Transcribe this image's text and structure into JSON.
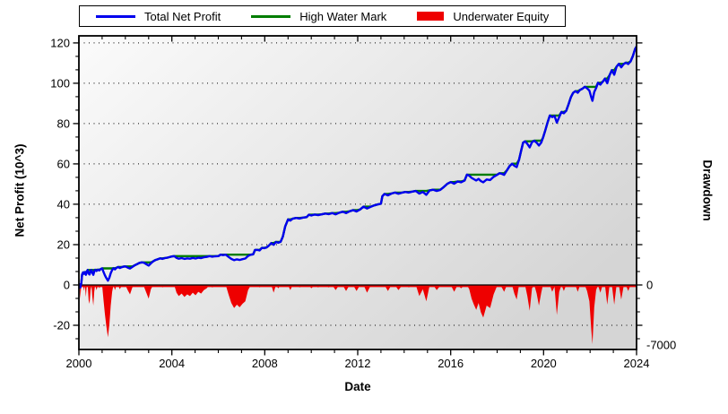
{
  "legend": {
    "items": [
      {
        "label": "Total Net Profit",
        "color": "#0000ee",
        "swatch": "line"
      },
      {
        "label": "High Water Mark",
        "color": "#007d00",
        "swatch": "line"
      },
      {
        "label": "Underwater Equity",
        "color": "#ee0000",
        "swatch": "fill"
      }
    ]
  },
  "chart_data": {
    "type": "line",
    "title": "",
    "xlabel": "Date",
    "ylabel_left": "Net Profit (10^3)",
    "ylabel_right": "Drawdown",
    "legend_position": "top",
    "grid": {
      "color": "#000000",
      "style": "dotted"
    },
    "plot_bg_gradient": [
      "#fbfbfb",
      "#d5d5d5"
    ],
    "zero_line_color": "#000000",
    "x_axis": {
      "min": 2000,
      "max": 2024,
      "ticks": [
        2000,
        2004,
        2008,
        2012,
        2016,
        2020,
        2024
      ],
      "minor_step_years": 1
    },
    "y_left": {
      "range": [
        -32,
        123.5
      ],
      "ticks": [
        -20,
        0,
        20,
        40,
        60,
        80,
        100,
        120
      ],
      "minor_divisions_per_major": 3
    },
    "y_right": {
      "ticks": [
        0,
        -7000
      ],
      "range_at_plot_bottom": -7520
    },
    "series": [
      {
        "name": "Total Net Profit",
        "axis": "left",
        "color": "#0000ee",
        "units": "10^3",
        "points": [
          [
            2000.0,
            0
          ],
          [
            2000.03,
            0.3
          ],
          [
            2000.06,
            -1.3
          ],
          [
            2000.1,
            0.6
          ],
          [
            2000.14,
            5.2
          ],
          [
            2000.18,
            6.2
          ],
          [
            2000.22,
            5.5
          ],
          [
            2000.26,
            6.4
          ],
          [
            2000.3,
            5.0
          ],
          [
            2000.34,
            6.6
          ],
          [
            2000.38,
            7.4
          ],
          [
            2000.42,
            5.6
          ],
          [
            2000.46,
            5.2
          ],
          [
            2000.5,
            6.8
          ],
          [
            2000.54,
            7.4
          ],
          [
            2000.58,
            6.0
          ],
          [
            2000.62,
            5.0
          ],
          [
            2000.66,
            6.6
          ],
          [
            2000.7,
            7.5
          ],
          [
            2000.76,
            6.9
          ],
          [
            2000.82,
            7.6
          ],
          [
            2000.88,
            7.2
          ],
          [
            2000.94,
            7.9
          ],
          [
            2001.0,
            8.2
          ],
          [
            2001.06,
            6.4
          ],
          [
            2001.12,
            4.8
          ],
          [
            2001.18,
            3.4
          ],
          [
            2001.25,
            2.1
          ],
          [
            2001.31,
            3.6
          ],
          [
            2001.37,
            5.8
          ],
          [
            2001.43,
            7.4
          ],
          [
            2001.49,
            8.3
          ],
          [
            2001.55,
            7.7
          ],
          [
            2001.62,
            8.5
          ],
          [
            2001.69,
            8.9
          ],
          [
            2001.76,
            8.4
          ],
          [
            2001.84,
            8.8
          ],
          [
            2001.92,
            9.1
          ],
          [
            2002.0,
            9.2
          ],
          [
            2002.1,
            8.6
          ],
          [
            2002.2,
            8.1
          ],
          [
            2002.3,
            8.9
          ],
          [
            2002.4,
            9.7
          ],
          [
            2002.5,
            10.3
          ],
          [
            2002.6,
            10.9
          ],
          [
            2002.7,
            11.2
          ],
          [
            2002.8,
            11.0
          ],
          [
            2002.9,
            10.3
          ],
          [
            2003.0,
            9.6
          ],
          [
            2003.1,
            10.7
          ],
          [
            2003.2,
            11.7
          ],
          [
            2003.3,
            12.4
          ],
          [
            2003.4,
            12.8
          ],
          [
            2003.5,
            13.2
          ],
          [
            2003.6,
            12.9
          ],
          [
            2003.7,
            13.3
          ],
          [
            2003.8,
            13.5
          ],
          [
            2003.9,
            13.8
          ],
          [
            2004.0,
            14.1
          ],
          [
            2004.1,
            14.3
          ],
          [
            2004.2,
            13.4
          ],
          [
            2004.3,
            13.0
          ],
          [
            2004.42,
            13.3
          ],
          [
            2004.54,
            12.9
          ],
          [
            2004.66,
            13.2
          ],
          [
            2004.78,
            13.0
          ],
          [
            2004.9,
            13.4
          ],
          [
            2005.02,
            13.1
          ],
          [
            2005.14,
            13.5
          ],
          [
            2005.26,
            13.3
          ],
          [
            2005.38,
            13.7
          ],
          [
            2005.5,
            13.9
          ],
          [
            2005.62,
            14.3
          ],
          [
            2005.74,
            14.0
          ],
          [
            2005.86,
            14.2
          ],
          [
            2006.0,
            14.3
          ],
          [
            2006.1,
            15.0
          ],
          [
            2006.2,
            14.8
          ],
          [
            2006.32,
            15.0
          ],
          [
            2006.44,
            13.9
          ],
          [
            2006.56,
            12.9
          ],
          [
            2006.68,
            12.3
          ],
          [
            2006.8,
            12.7
          ],
          [
            2006.92,
            12.4
          ],
          [
            2007.04,
            12.8
          ],
          [
            2007.16,
            13.1
          ],
          [
            2007.28,
            14.4
          ],
          [
            2007.4,
            15.0
          ],
          [
            2007.5,
            15.2
          ],
          [
            2007.58,
            17.3
          ],
          [
            2007.68,
            17.4
          ],
          [
            2007.78,
            17.1
          ],
          [
            2007.88,
            18.4
          ],
          [
            2007.98,
            18.2
          ],
          [
            2008.08,
            18.6
          ],
          [
            2008.18,
            19.6
          ],
          [
            2008.28,
            20.8
          ],
          [
            2008.38,
            19.9
          ],
          [
            2008.48,
            21.3
          ],
          [
            2008.58,
            20.9
          ],
          [
            2008.68,
            21.4
          ],
          [
            2008.78,
            24.0
          ],
          [
            2008.88,
            29.0
          ],
          [
            2009.0,
            32.5
          ],
          [
            2009.1,
            31.9
          ],
          [
            2009.2,
            32.8
          ],
          [
            2009.35,
            33.2
          ],
          [
            2009.5,
            32.9
          ],
          [
            2009.65,
            33.4
          ],
          [
            2009.8,
            33.6
          ],
          [
            2009.9,
            34.8
          ],
          [
            2010.0,
            34.4
          ],
          [
            2010.15,
            34.9
          ],
          [
            2010.3,
            34.6
          ],
          [
            2010.45,
            35.0
          ],
          [
            2010.6,
            35.4
          ],
          [
            2010.75,
            35.1
          ],
          [
            2010.9,
            35.6
          ],
          [
            2011.05,
            35.0
          ],
          [
            2011.2,
            35.8
          ],
          [
            2011.35,
            36.3
          ],
          [
            2011.5,
            35.6
          ],
          [
            2011.65,
            36.5
          ],
          [
            2011.8,
            37.1
          ],
          [
            2011.95,
            36.4
          ],
          [
            2012.1,
            37.4
          ],
          [
            2012.25,
            38.8
          ],
          [
            2012.4,
            37.9
          ],
          [
            2012.55,
            38.7
          ],
          [
            2012.7,
            39.4
          ],
          [
            2012.85,
            39.9
          ],
          [
            2013.0,
            40.3
          ],
          [
            2013.06,
            44.0
          ],
          [
            2013.15,
            45.1
          ],
          [
            2013.3,
            44.4
          ],
          [
            2013.45,
            45.3
          ],
          [
            2013.6,
            45.8
          ],
          [
            2013.75,
            45.2
          ],
          [
            2013.9,
            45.7
          ],
          [
            2014.05,
            46.1
          ],
          [
            2014.2,
            45.8
          ],
          [
            2014.35,
            46.3
          ],
          [
            2014.5,
            46.6
          ],
          [
            2014.65,
            45.3
          ],
          [
            2014.8,
            46.1
          ],
          [
            2014.95,
            44.7
          ],
          [
            2015.1,
            46.9
          ],
          [
            2015.25,
            47.2
          ],
          [
            2015.4,
            46.6
          ],
          [
            2015.55,
            47.1
          ],
          [
            2015.7,
            48.5
          ],
          [
            2015.85,
            50.1
          ],
          [
            2016.0,
            51.0
          ],
          [
            2016.15,
            50.2
          ],
          [
            2016.3,
            51.3
          ],
          [
            2016.45,
            50.9
          ],
          [
            2016.6,
            51.8
          ],
          [
            2016.7,
            54.7
          ],
          [
            2016.8,
            54.2
          ],
          [
            2016.9,
            53.1
          ],
          [
            2017.0,
            52.4
          ],
          [
            2017.1,
            51.8
          ],
          [
            2017.2,
            52.6
          ],
          [
            2017.3,
            51.5
          ],
          [
            2017.4,
            50.9
          ],
          [
            2017.55,
            52.3
          ],
          [
            2017.7,
            52.0
          ],
          [
            2017.85,
            53.6
          ],
          [
            2018.0,
            54.6
          ],
          [
            2018.1,
            55.4
          ],
          [
            2018.2,
            55.1
          ],
          [
            2018.3,
            54.6
          ],
          [
            2018.42,
            56.8
          ],
          [
            2018.54,
            59.0
          ],
          [
            2018.64,
            60.1
          ],
          [
            2018.74,
            59.1
          ],
          [
            2018.84,
            58.4
          ],
          [
            2018.94,
            62.0
          ],
          [
            2019.04,
            67.0
          ],
          [
            2019.12,
            70.6
          ],
          [
            2019.2,
            71.2
          ],
          [
            2019.3,
            69.9
          ],
          [
            2019.4,
            68.2
          ],
          [
            2019.5,
            70.8
          ],
          [
            2019.6,
            71.5
          ],
          [
            2019.7,
            70.5
          ],
          [
            2019.8,
            69.1
          ],
          [
            2019.9,
            70.6
          ],
          [
            2019.97,
            72.9
          ],
          [
            2020.07,
            76.5
          ],
          [
            2020.17,
            80.5
          ],
          [
            2020.27,
            84.0
          ],
          [
            2020.37,
            83.2
          ],
          [
            2020.47,
            83.8
          ],
          [
            2020.57,
            80.5
          ],
          [
            2020.67,
            83.2
          ],
          [
            2020.77,
            85.8
          ],
          [
            2020.87,
            85.1
          ],
          [
            2020.97,
            86.3
          ],
          [
            2021.07,
            89.5
          ],
          [
            2021.17,
            93.0
          ],
          [
            2021.27,
            95.2
          ],
          [
            2021.37,
            96.1
          ],
          [
            2021.47,
            95.3
          ],
          [
            2021.57,
            96.7
          ],
          [
            2021.67,
            97.3
          ],
          [
            2021.77,
            98.2
          ],
          [
            2021.87,
            97.5
          ],
          [
            2021.97,
            96.3
          ],
          [
            2022.05,
            93.0
          ],
          [
            2022.1,
            91.3
          ],
          [
            2022.18,
            95.6
          ],
          [
            2022.26,
            97.6
          ],
          [
            2022.34,
            100.2
          ],
          [
            2022.44,
            99.3
          ],
          [
            2022.54,
            100.7
          ],
          [
            2022.64,
            102.3
          ],
          [
            2022.74,
            100.0
          ],
          [
            2022.84,
            104.0
          ],
          [
            2022.94,
            106.5
          ],
          [
            2023.04,
            104.2
          ],
          [
            2023.14,
            108.2
          ],
          [
            2023.24,
            109.6
          ],
          [
            2023.34,
            107.9
          ],
          [
            2023.44,
            109.4
          ],
          [
            2023.54,
            110.2
          ],
          [
            2023.64,
            109.5
          ],
          [
            2023.74,
            110.8
          ],
          [
            2023.84,
            113.5
          ],
          [
            2023.94,
            117.0
          ],
          [
            2024.03,
            118.8
          ],
          [
            2024.09,
            117.6
          ],
          [
            2024.15,
            119.6
          ]
        ]
      },
      {
        "name": "High Water Mark",
        "axis": "left",
        "color": "#007d00",
        "derived_from": "running maximum of Total Net Profit"
      },
      {
        "name": "Underwater Equity",
        "axis": "right",
        "color": "#ee0000",
        "derived_from": "(Total Net Profit - High Water Mark) x 1000"
      }
    ]
  }
}
